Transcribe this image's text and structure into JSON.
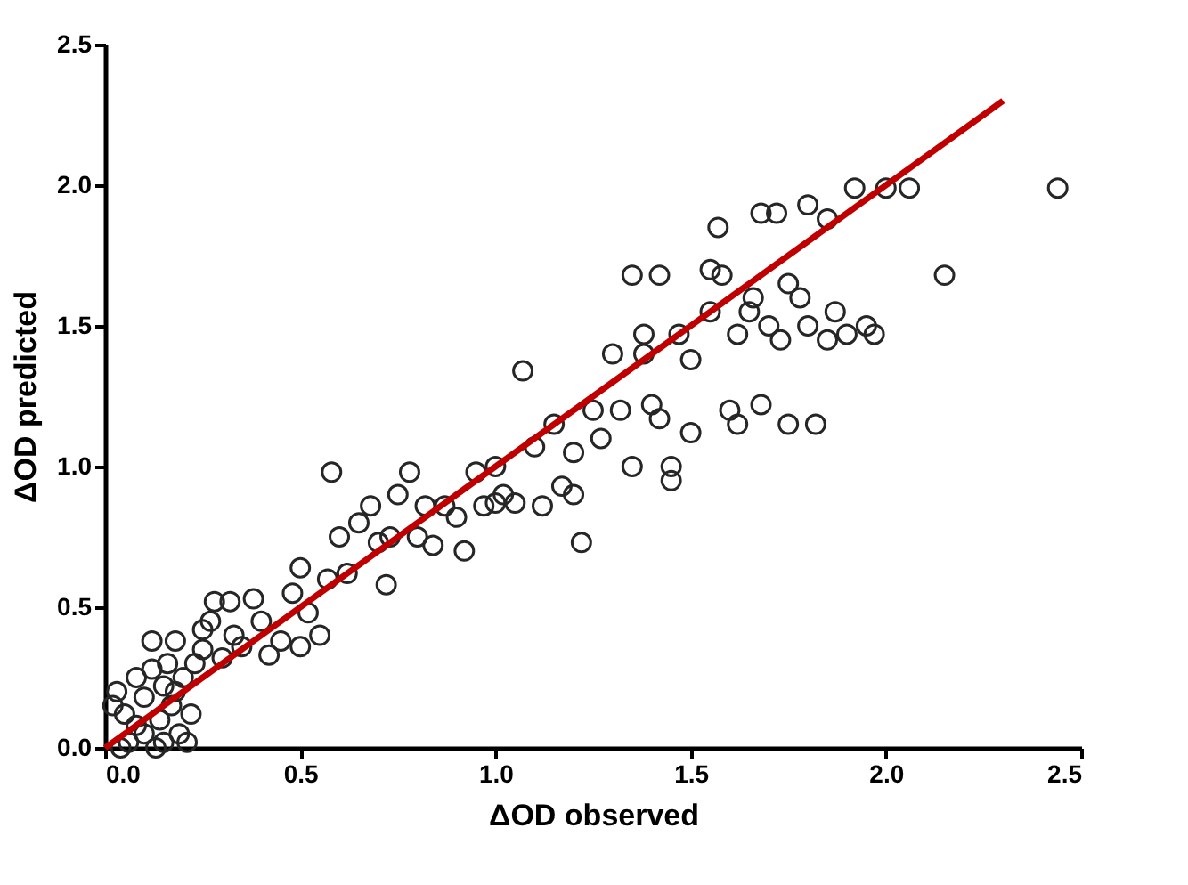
{
  "chart_data": {
    "type": "scatter",
    "xlabel": "ΔOD observed",
    "ylabel": "ΔOD predicted",
    "xlim": [
      0,
      2.5
    ],
    "ylim": [
      0,
      2.5
    ],
    "xticks": [
      {
        "value": 0,
        "label": "0.0"
      },
      {
        "value": 0.5,
        "label": "0.5"
      },
      {
        "value": 1,
        "label": "1.0"
      },
      {
        "value": 1.5,
        "label": "1.5"
      },
      {
        "value": 2,
        "label": "2.0"
      },
      {
        "value": 2.5,
        "label": "2.5"
      }
    ],
    "yticks": [
      {
        "value": 0,
        "label": "0.0"
      },
      {
        "value": 0.5,
        "label": "0.5"
      },
      {
        "value": 1,
        "label": "1.0"
      },
      {
        "value": 1.5,
        "label": "1.5"
      },
      {
        "value": 2,
        "label": "2.0"
      },
      {
        "value": 2.5,
        "label": "2.5"
      }
    ],
    "grid": false,
    "series": [
      {
        "marker": "circle",
        "color": "#262626",
        "x": [
          0.02,
          0.03,
          0.05,
          0.06,
          0.08,
          0.1,
          0.1,
          0.12,
          0.12,
          0.14,
          0.15,
          0.15,
          0.16,
          0.17,
          0.18,
          0.19,
          0.2,
          0.21,
          0.22,
          0.23,
          0.13,
          0.08,
          0.04,
          0.18,
          0.25,
          0.25,
          0.27,
          0.28,
          0.3,
          0.32,
          0.33,
          0.35,
          0.38,
          0.4,
          0.42,
          0.45,
          0.48,
          0.5,
          0.5,
          0.52,
          0.55,
          0.57,
          0.58,
          0.6,
          0.62,
          0.65,
          0.68,
          0.7,
          0.72,
          0.73,
          0.75,
          0.78,
          0.8,
          0.82,
          0.84,
          0.87,
          0.9,
          0.92,
          0.95,
          0.97,
          1.0,
          1.02,
          1.05,
          1.07,
          1.1,
          1.12,
          1.15,
          1.17,
          1.2,
          1.22,
          1.25,
          1.27,
          1.3,
          1.32,
          1.35,
          1.38,
          1.4,
          1.42,
          1.45,
          1.47,
          1.5,
          1.35,
          1.38,
          1.42,
          1.5,
          1.55,
          1.55,
          1.57,
          1.6,
          1.62,
          1.62,
          1.65,
          1.66,
          1.68,
          1.7,
          1.72,
          1.73,
          1.75,
          1.75,
          1.78,
          1.8,
          1.8,
          1.82,
          1.85,
          1.85,
          1.87,
          1.9,
          1.95,
          1.92,
          1.97,
          2.0,
          2.06,
          2.15,
          2.44,
          1.58,
          1.68,
          1.45,
          1.2,
          1.0
        ],
        "values": [
          0.15,
          0.2,
          0.12,
          0.02,
          0.25,
          0.18,
          0.05,
          0.28,
          0.38,
          0.1,
          0.22,
          0.02,
          0.3,
          0.15,
          0.38,
          0.05,
          0.25,
          0.02,
          0.12,
          0.3,
          0.0,
          0.08,
          0.0,
          0.2,
          0.35,
          0.42,
          0.45,
          0.52,
          0.32,
          0.52,
          0.4,
          0.36,
          0.53,
          0.45,
          0.33,
          0.38,
          0.55,
          0.36,
          0.64,
          0.48,
          0.4,
          0.6,
          0.98,
          0.75,
          0.62,
          0.8,
          0.86,
          0.73,
          0.58,
          0.75,
          0.9,
          0.98,
          0.75,
          0.86,
          0.72,
          0.86,
          0.82,
          0.7,
          0.98,
          0.86,
          1.0,
          0.9,
          0.87,
          1.34,
          1.07,
          0.86,
          1.15,
          0.93,
          1.05,
          0.73,
          1.2,
          1.1,
          1.4,
          1.2,
          1.0,
          1.4,
          1.22,
          1.17,
          0.95,
          1.47,
          1.12,
          1.68,
          1.47,
          1.68,
          1.38,
          1.55,
          1.7,
          1.85,
          1.2,
          1.15,
          1.47,
          1.55,
          1.6,
          1.22,
          1.5,
          1.9,
          1.45,
          1.65,
          1.15,
          1.6,
          1.93,
          1.5,
          1.15,
          1.88,
          1.45,
          1.55,
          1.47,
          1.5,
          1.99,
          1.47,
          1.99,
          1.99,
          1.68,
          1.99,
          1.68,
          1.9,
          1.0,
          0.9,
          0.87
        ]
      },
      {
        "type": "line",
        "color": "#c00000",
        "x": [
          0,
          2.3
        ],
        "values": [
          0,
          2.3
        ]
      }
    ]
  }
}
